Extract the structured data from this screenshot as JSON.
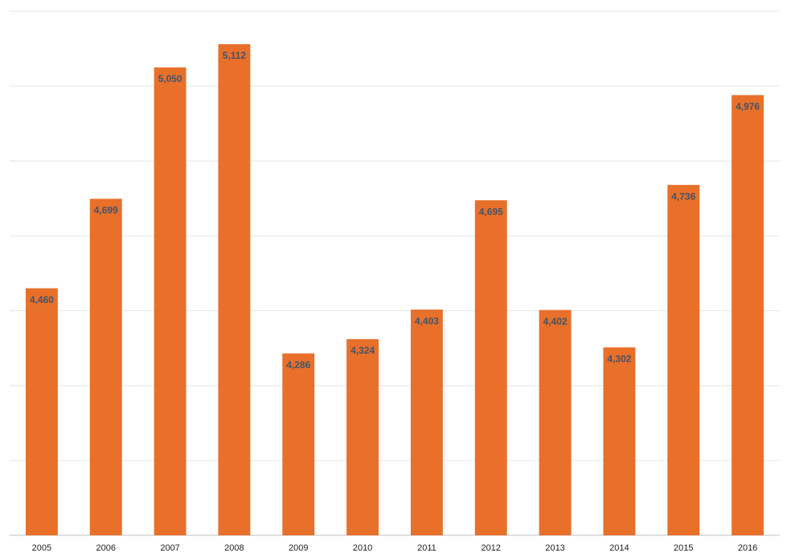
{
  "chart_data": {
    "type": "bar",
    "categories": [
      "2005",
      "2006",
      "2007",
      "2008",
      "2009",
      "2010",
      "2011",
      "2012",
      "2013",
      "2014",
      "2015",
      "2016"
    ],
    "values": [
      4460,
      4699,
      5050,
      5112,
      4286,
      4324,
      4403,
      4695,
      4402,
      4302,
      4736,
      4976
    ],
    "value_labels": [
      "4,460",
      "4,699",
      "5,050",
      "5,112",
      "4,286",
      "4,324",
      "4,403",
      "4,695",
      "4,402",
      "4,302",
      "4,736",
      "4,976"
    ],
    "color": "#e8702a",
    "label_color": "#44546a",
    "ylim": [
      3800,
      5200
    ],
    "yticks": [
      3800,
      4000,
      4200,
      4400,
      4600,
      4800,
      5000,
      5200
    ],
    "grid": true
  }
}
